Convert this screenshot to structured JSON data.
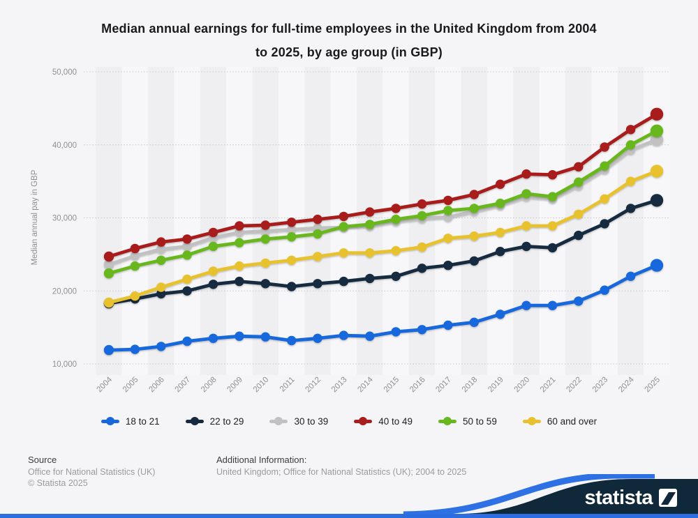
{
  "header": {
    "title_line1": "Median annual earnings for full-time employees in the United Kingdom from 2004",
    "title_line2": "to 2025, by age group (in GBP)"
  },
  "chart_data": {
    "type": "line",
    "title": "Median annual earnings for full-time employees in the United Kingdom from 2004 to 2025, by age group (in GBP)",
    "xlabel": "",
    "ylabel": "Median annual pay in GBP",
    "x": [
      "2004",
      "2005",
      "2006",
      "2007",
      "2008",
      "2009",
      "2010",
      "2011",
      "2012",
      "2013",
      "2014",
      "2015",
      "2016",
      "2017",
      "2018",
      "2019",
      "2020",
      "2021",
      "2022",
      "2023",
      "2024",
      "2025"
    ],
    "ylim": [
      10000,
      50000
    ],
    "ytick_labels": [
      "10,000",
      "20,000",
      "30,000",
      "40,000",
      "50,000"
    ],
    "ytick_values": [
      10000,
      20000,
      30000,
      40000,
      50000
    ],
    "grid": true,
    "legend_position": "bottom",
    "series": [
      {
        "name": "18 to 21",
        "color": "#1868dc",
        "values": [
          11900,
          12000,
          12400,
          13100,
          13500,
          13800,
          13700,
          13200,
          13500,
          13900,
          13800,
          14400,
          14700,
          15300,
          15700,
          16800,
          18000,
          18000,
          18600,
          20100,
          22000,
          23500
        ]
      },
      {
        "name": "22 to 29",
        "color": "#16293f",
        "values": [
          18300,
          18900,
          19600,
          20000,
          20900,
          21300,
          21000,
          20600,
          21000,
          21300,
          21700,
          22000,
          23100,
          23500,
          24100,
          25400,
          26100,
          25900,
          27600,
          29200,
          31300,
          32400
        ]
      },
      {
        "name": "30 to 39",
        "color": "#c1c1c1",
        "values": [
          23600,
          24800,
          25700,
          26100,
          27300,
          28000,
          28200,
          28400,
          28600,
          28700,
          28900,
          29500,
          29900,
          30100,
          30900,
          31700,
          32900,
          32600,
          34400,
          36600,
          39300,
          40700
        ]
      },
      {
        "name": "40 to 49",
        "color": "#a81e1e",
        "values": [
          24700,
          25800,
          26700,
          27100,
          28000,
          28900,
          29000,
          29400,
          29800,
          30200,
          30800,
          31300,
          31900,
          32400,
          33200,
          34600,
          36000,
          35900,
          37000,
          39700,
          42100,
          44200
        ]
      },
      {
        "name": "50 to 59",
        "color": "#67b71f",
        "values": [
          22400,
          23400,
          24200,
          24900,
          26100,
          26600,
          27100,
          27400,
          27800,
          28800,
          29100,
          29800,
          30300,
          31000,
          31300,
          32000,
          33300,
          32900,
          34900,
          37100,
          40000,
          41900
        ]
      },
      {
        "name": "60 and over",
        "color": "#e8c22e",
        "values": [
          18400,
          19300,
          20500,
          21600,
          22700,
          23400,
          23800,
          24200,
          24700,
          25200,
          25200,
          25500,
          26000,
          27200,
          27500,
          28000,
          28900,
          28900,
          30500,
          32600,
          35000,
          36400
        ]
      }
    ]
  },
  "plot_style": {
    "band_color_even": "#efeff1",
    "band_color_odd": "#f7f7f9",
    "gridline_color": "#c6c6c8",
    "tick_color": "#8f8f8f"
  },
  "footer": {
    "source_label": "Source",
    "source_value": "Office for National Statistics (UK)",
    "copyright": "© Statista 2025",
    "additional_label": "Additional Information:",
    "additional_value": "United Kingdom; Office for National Statistics (UK); 2004 to 2025"
  },
  "branding": {
    "logo_text": "statista",
    "navy": "#10293a",
    "blue": "#2e71e5",
    "strip_blue": "#2c6de2"
  }
}
